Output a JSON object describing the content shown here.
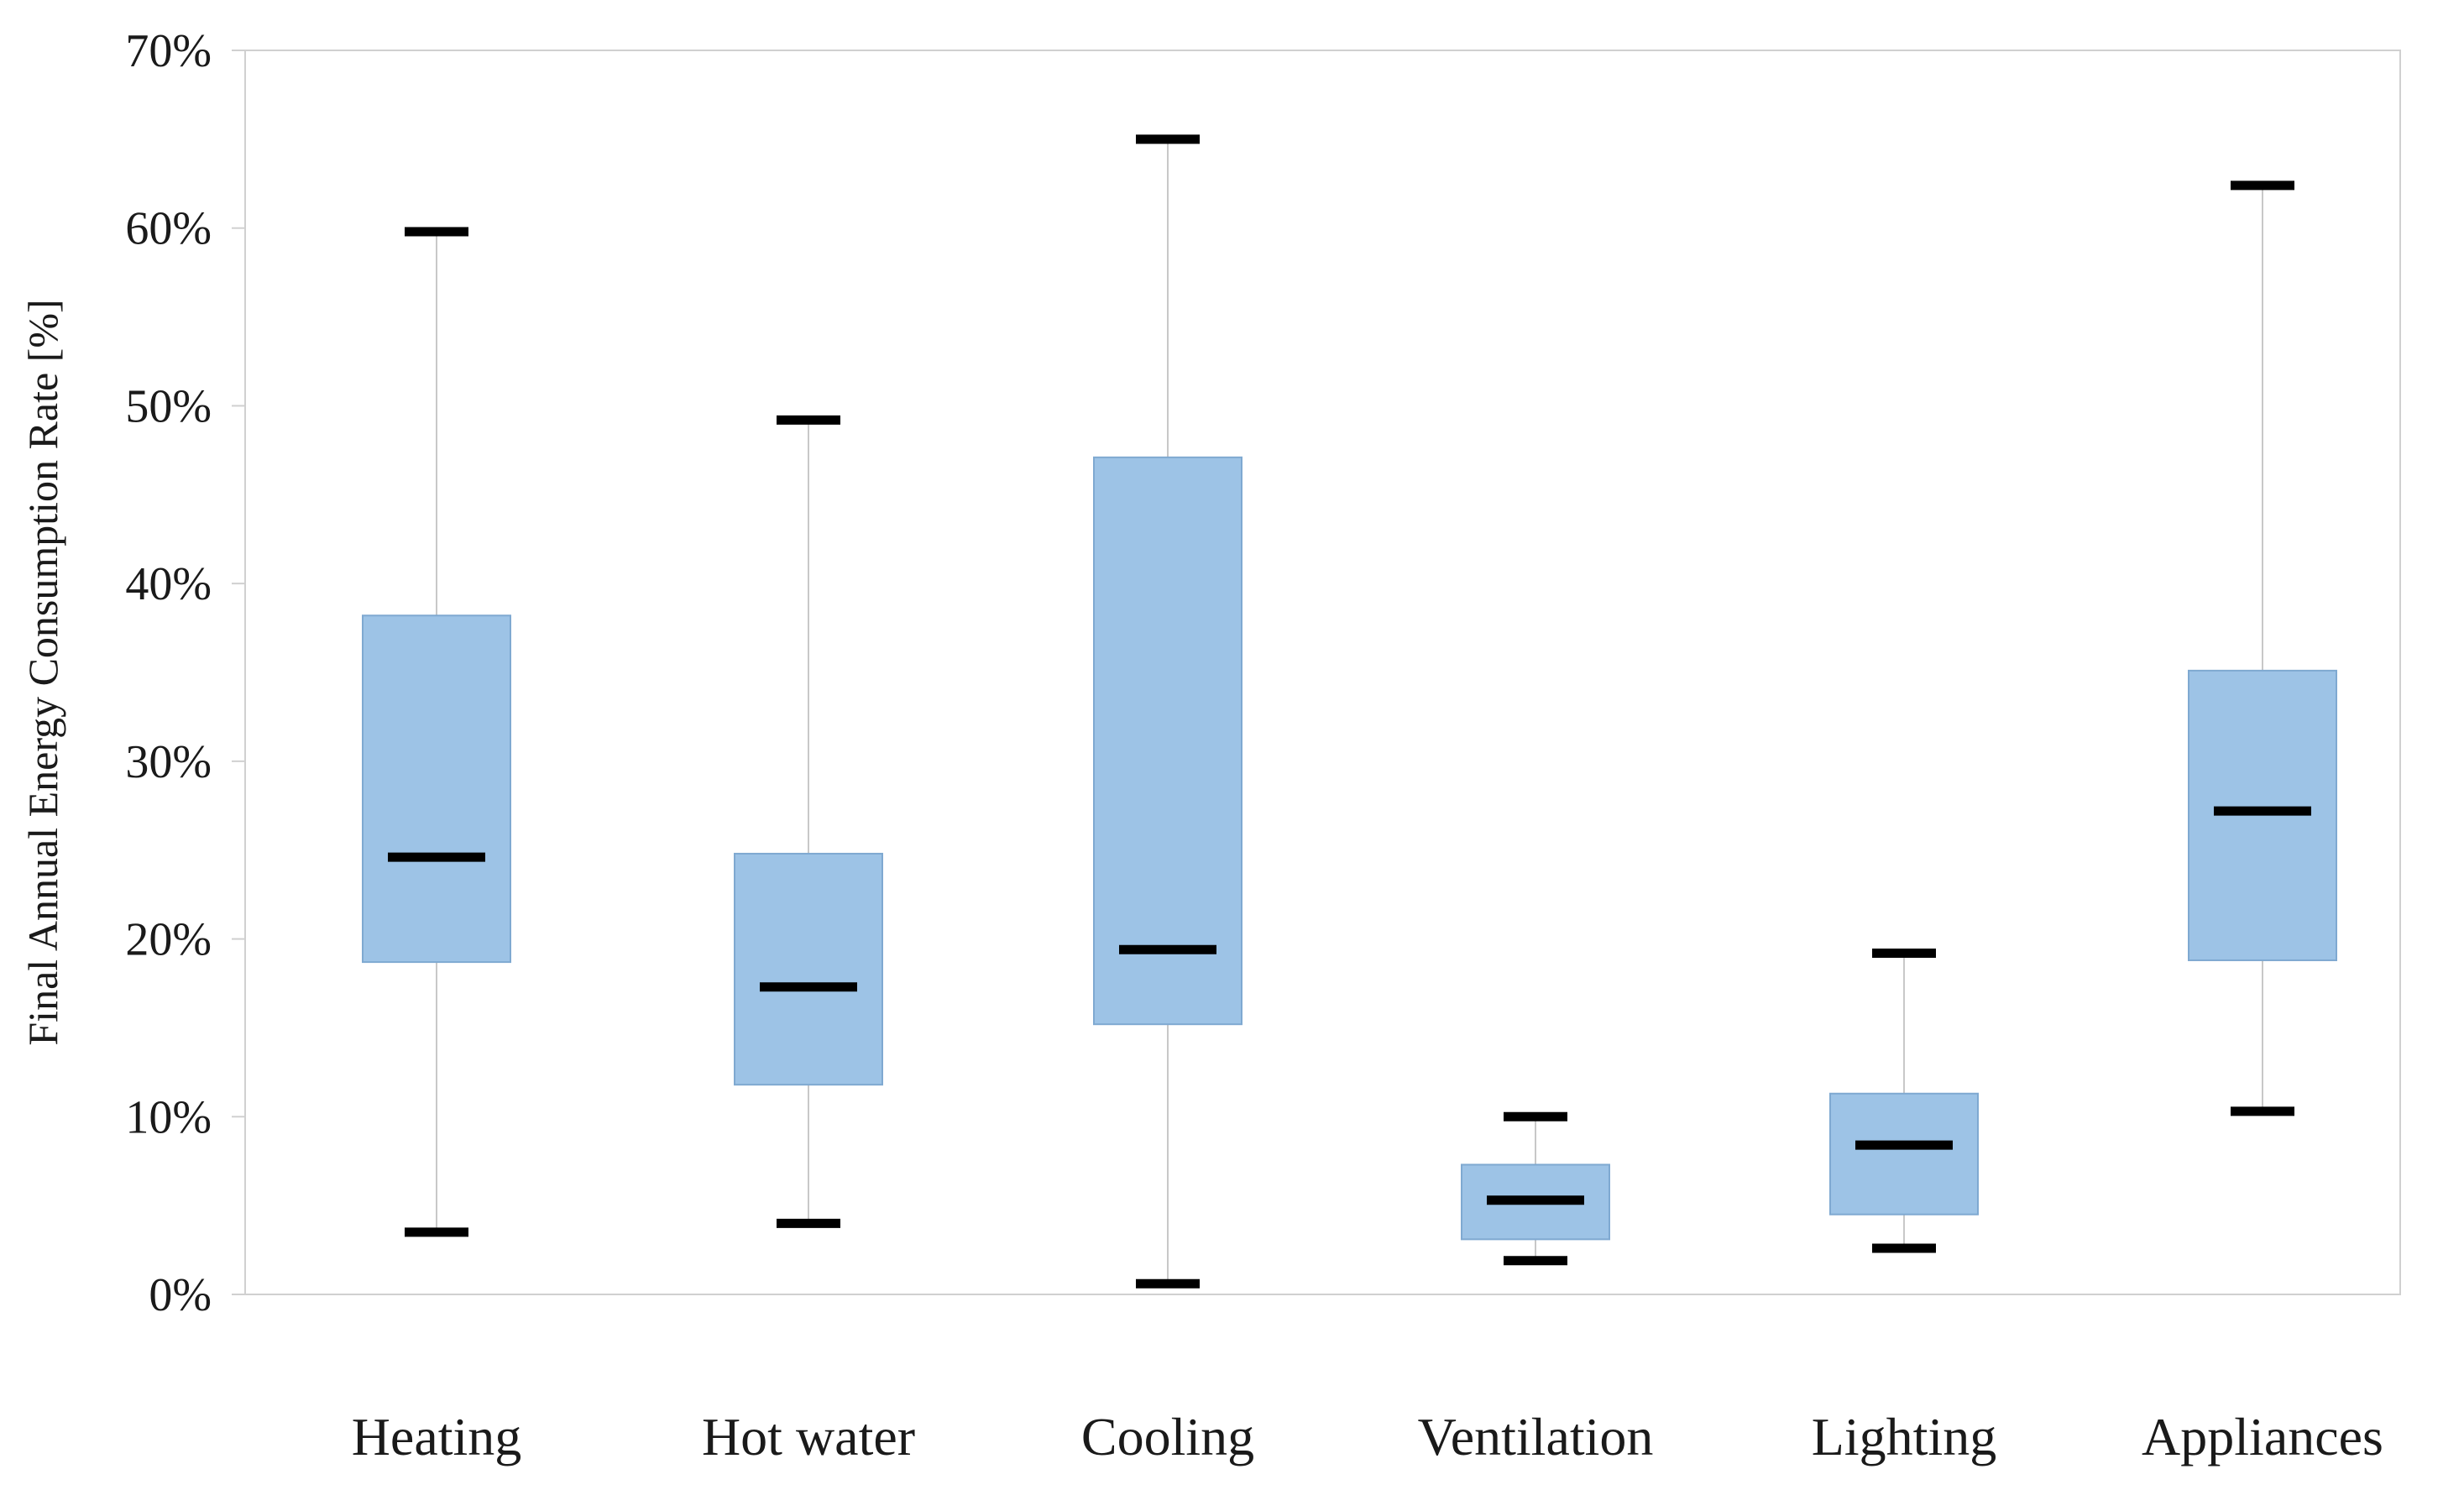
{
  "chart_data": {
    "type": "boxplot",
    "title": "",
    "xlabel": "",
    "ylabel": "Final Annual Energy Consumption Rate [%]",
    "ylim": [
      0,
      70
    ],
    "yticks": [
      0,
      10,
      20,
      30,
      40,
      50,
      60,
      70
    ],
    "ytick_labels": [
      "0%",
      "10%",
      "20%",
      "30%",
      "40%",
      "50%",
      "60%",
      "70%"
    ],
    "grid": false,
    "colors": {
      "box_fill": "#9dc3e6",
      "box_edge": "#7fa9d1",
      "whisker": "#c8c8c8",
      "marker": "#000000",
      "frame": "#d0d0d0",
      "text": "#1a1a1a"
    },
    "categories": [
      "Heating",
      "Hot water",
      "Cooling",
      "Ventilation",
      "Lighting",
      "Appliances"
    ],
    "boxes": [
      {
        "name": "Heating",
        "min": 3.5,
        "q1": 18.7,
        "median": 24.6,
        "q3": 38.2,
        "max": 59.8
      },
      {
        "name": "Hot water",
        "min": 4.0,
        "q1": 11.8,
        "median": 17.3,
        "q3": 24.8,
        "max": 49.2
      },
      {
        "name": "Cooling",
        "min": 0.6,
        "q1": 15.2,
        "median": 19.4,
        "q3": 47.1,
        "max": 65.0
      },
      {
        "name": "Ventilation",
        "min": 1.9,
        "q1": 3.1,
        "median": 5.3,
        "q3": 7.3,
        "max": 10.0
      },
      {
        "name": "Lighting",
        "min": 2.6,
        "q1": 4.5,
        "median": 8.4,
        "q3": 11.3,
        "max": 19.2
      },
      {
        "name": "Appliances",
        "min": 10.3,
        "q1": 18.8,
        "median": 27.2,
        "q3": 35.1,
        "max": 62.4
      }
    ]
  }
}
